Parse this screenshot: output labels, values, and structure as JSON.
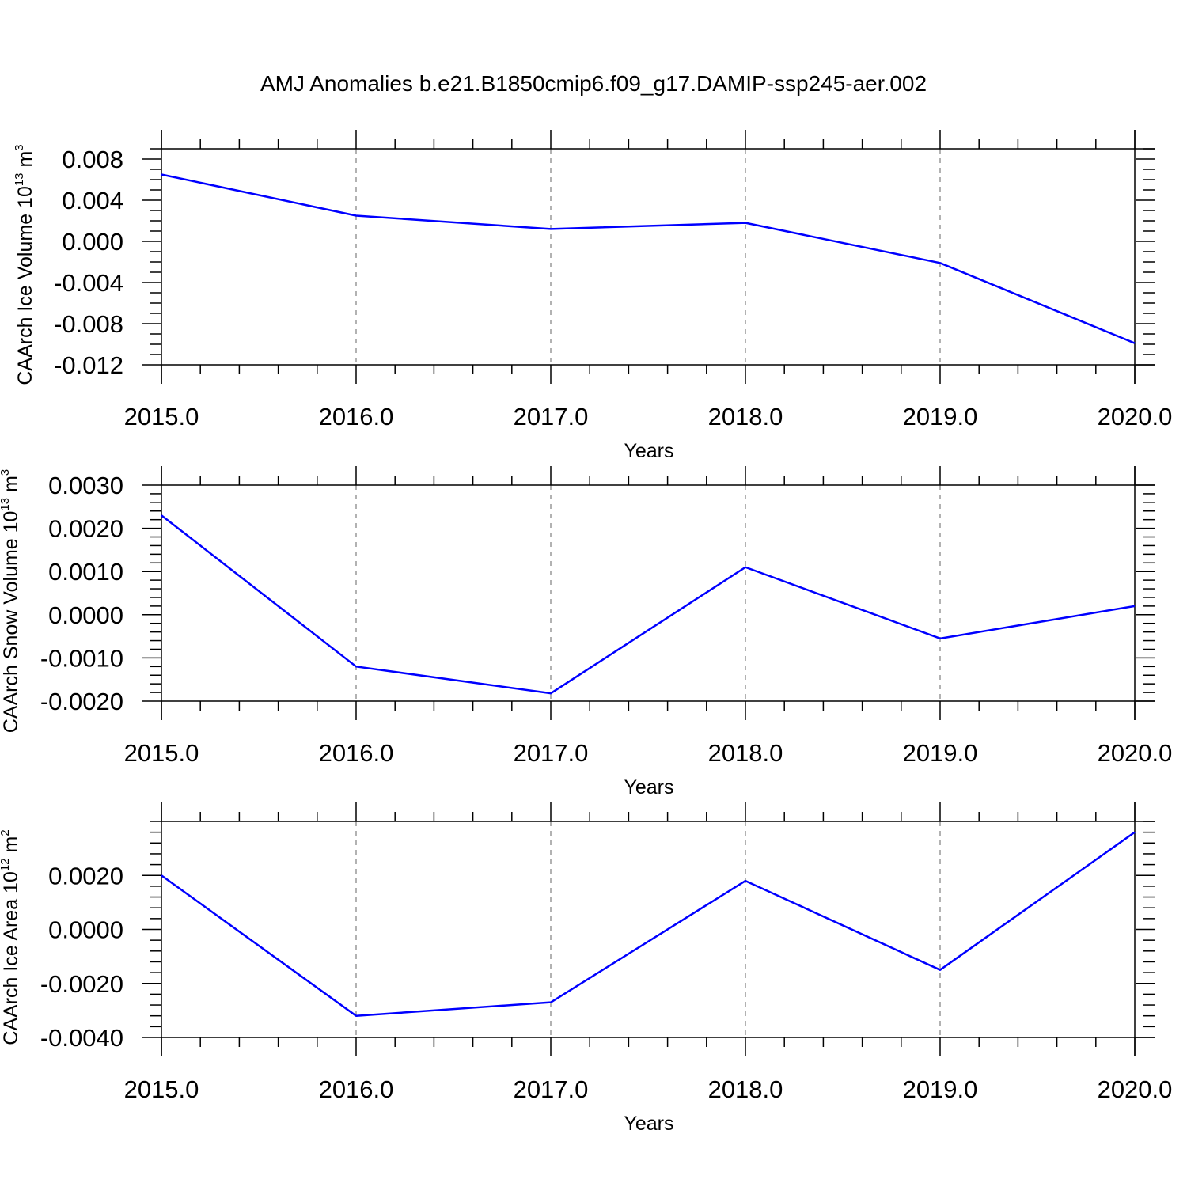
{
  "title": "AMJ Anomalies b.e21.B1850cmip6.f09_g17.DAMIP-ssp245-aer.002",
  "chart_data": [
    {
      "type": "line",
      "ylabel": {
        "main": "CAArch Ice Volume 10",
        "exponent": "13",
        "unit": " m",
        "unit_exponent": "3"
      },
      "xlabel": "Years",
      "x": [
        2015,
        2016,
        2017,
        2018,
        2019,
        2020
      ],
      "xticks": [
        "2015.0",
        "2016.0",
        "2017.0",
        "2018.0",
        "2019.0",
        "2020.0"
      ],
      "xlim": [
        2015,
        2020.1
      ],
      "ylim": [
        -0.012,
        0.009
      ],
      "yticks": [
        "0.008",
        "0.004",
        "0.000",
        "-0.004",
        "-0.008",
        "-0.012"
      ],
      "ytick_values": [
        0.008,
        0.004,
        0.0,
        -0.004,
        -0.008,
        -0.012
      ],
      "yminor": 0.001,
      "series": [
        {
          "values": [
            0.0065,
            0.0025,
            0.0012,
            0.0018,
            -0.0021,
            -0.0099
          ]
        }
      ],
      "line_color": "#0000ff",
      "grid": "vertical dashed at major x ticks"
    },
    {
      "type": "line",
      "ylabel": {
        "main": "CAArch Snow Volume 10",
        "exponent": "13",
        "unit": " m",
        "unit_exponent": "3"
      },
      "xlabel": "Years",
      "x": [
        2015,
        2016,
        2017,
        2018,
        2019,
        2020
      ],
      "xticks": [
        "2015.0",
        "2016.0",
        "2017.0",
        "2018.0",
        "2019.0",
        "2020.0"
      ],
      "xlim": [
        2015,
        2020.1
      ],
      "ylim": [
        -0.002,
        0.003
      ],
      "yticks": [
        "0.0030",
        "0.0020",
        "0.0010",
        "0.0000",
        "-0.0010",
        "-0.0020"
      ],
      "ytick_values": [
        0.003,
        0.002,
        0.001,
        0.0,
        -0.001,
        -0.002
      ],
      "yminor": 0.0002,
      "series": [
        {
          "values": [
            0.0023,
            -0.0012,
            -0.00182,
            0.0011,
            -0.00055,
            0.0002
          ]
        }
      ],
      "line_color": "#0000ff",
      "grid": "vertical dashed at major x ticks"
    },
    {
      "type": "line",
      "ylabel": {
        "main": "CAArch Ice Area 10",
        "exponent": "12",
        "unit": " m",
        "unit_exponent": "2"
      },
      "xlabel": "Years",
      "x": [
        2015,
        2016,
        2017,
        2018,
        2019,
        2020
      ],
      "xticks": [
        "2015.0",
        "2016.0",
        "2017.0",
        "2018.0",
        "2019.0",
        "2020.0"
      ],
      "xlim": [
        2015,
        2020.1
      ],
      "ylim": [
        -0.004,
        0.004
      ],
      "yticks": [
        "0.0020",
        "0.0000",
        "-0.0020",
        "-0.0040"
      ],
      "ytick_values": [
        0.002,
        0.0,
        -0.002,
        -0.004
      ],
      "yminor": 0.0004,
      "series": [
        {
          "values": [
            0.002,
            -0.0032,
            -0.0027,
            0.0018,
            -0.0015,
            0.0036
          ]
        }
      ],
      "line_color": "#0000ff",
      "grid": "vertical dashed at major x ticks"
    }
  ]
}
